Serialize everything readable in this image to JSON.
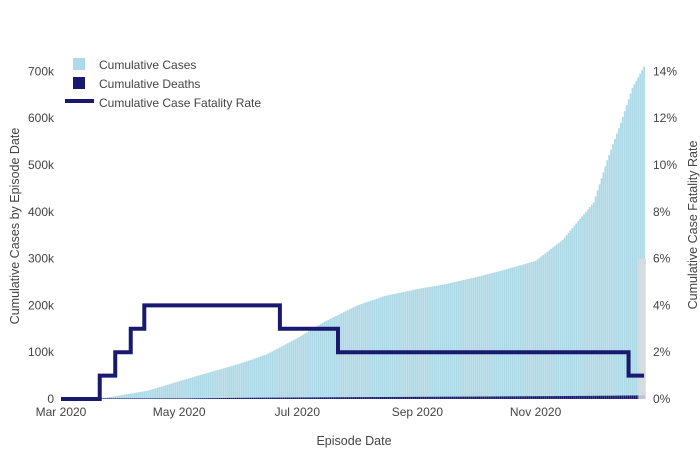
{
  "chart_data": {
    "type": "bar",
    "xlabel": "Episode Date",
    "ylabel": "Cumulative Cases by Episode Date",
    "y2label": "Cumulative Case Fatality Rate",
    "x_range": [
      "2020-03-01",
      "2020-12-28"
    ],
    "x_ticks": [
      {
        "date": "2020-03-01",
        "label": "Mar 2020"
      },
      {
        "date": "2020-05-01",
        "label": "May 2020"
      },
      {
        "date": "2020-07-01",
        "label": "Jul 2020"
      },
      {
        "date": "2020-09-01",
        "label": "Sep 2020"
      },
      {
        "date": "2020-11-01",
        "label": "Nov 2020"
      }
    ],
    "ylim": [
      0,
      735000
    ],
    "y_ticks": [
      {
        "value": 0,
        "label": "0"
      },
      {
        "value": 100000,
        "label": "100k"
      },
      {
        "value": 200000,
        "label": "200k"
      },
      {
        "value": 300000,
        "label": "300k"
      },
      {
        "value": 400000,
        "label": "400k"
      },
      {
        "value": 500000,
        "label": "500k"
      },
      {
        "value": 600000,
        "label": "600k"
      },
      {
        "value": 700000,
        "label": "700k"
      }
    ],
    "y2lim": [
      0,
      14.7
    ],
    "y2_ticks": [
      {
        "value": 0,
        "label": "0%"
      },
      {
        "value": 2,
        "label": "2%"
      },
      {
        "value": 4,
        "label": "4%"
      },
      {
        "value": 6,
        "label": "6%"
      },
      {
        "value": 8,
        "label": "8%"
      },
      {
        "value": 10,
        "label": "10%"
      },
      {
        "value": 12,
        "label": "12%"
      },
      {
        "value": 14,
        "label": "14%"
      }
    ],
    "grid": false,
    "legend_position": "top-left",
    "legend": [
      {
        "label": "Cumulative Cases",
        "symbol": "square",
        "color": "#add8e6"
      },
      {
        "label": "Cumulative Deaths",
        "symbol": "square",
        "color": "#191970"
      },
      {
        "label": "Cumulative Case Fatality Rate",
        "symbol": "line",
        "color": "#191970"
      }
    ],
    "series": [
      {
        "name": "Cumulative Cases",
        "type": "bar",
        "color": "#add8e6",
        "points": [
          [
            "2020-03-20",
            0
          ],
          [
            "2020-04-01",
            8000
          ],
          [
            "2020-04-15",
            18000
          ],
          [
            "2020-05-01",
            38000
          ],
          [
            "2020-05-15",
            55000
          ],
          [
            "2020-06-01",
            75000
          ],
          [
            "2020-06-15",
            95000
          ],
          [
            "2020-07-01",
            130000
          ],
          [
            "2020-07-15",
            165000
          ],
          [
            "2020-08-01",
            200000
          ],
          [
            "2020-08-15",
            220000
          ],
          [
            "2020-09-01",
            235000
          ],
          [
            "2020-09-15",
            245000
          ],
          [
            "2020-10-01",
            260000
          ],
          [
            "2020-10-15",
            275000
          ],
          [
            "2020-11-01",
            295000
          ],
          [
            "2020-11-15",
            340000
          ],
          [
            "2020-12-01",
            420000
          ],
          [
            "2020-12-08",
            510000
          ],
          [
            "2020-12-15",
            590000
          ],
          [
            "2020-12-21",
            665000
          ],
          [
            "2020-12-27",
            710000
          ]
        ]
      },
      {
        "name": "Cumulative Deaths",
        "type": "bar",
        "color": "#191970",
        "points": [
          [
            "2020-03-20",
            0
          ],
          [
            "2020-04-15",
            500
          ],
          [
            "2020-06-01",
            2500
          ],
          [
            "2020-08-01",
            4000
          ],
          [
            "2020-10-01",
            5200
          ],
          [
            "2020-12-01",
            6800
          ],
          [
            "2020-12-27",
            7800
          ]
        ]
      },
      {
        "name": "Cumulative Case Fatality Rate",
        "type": "step-line",
        "axis": "right",
        "color": "#191970",
        "points": [
          [
            "2020-03-01",
            0
          ],
          [
            "2020-03-21",
            0
          ],
          [
            "2020-03-21",
            1
          ],
          [
            "2020-03-29",
            1
          ],
          [
            "2020-03-29",
            2
          ],
          [
            "2020-04-06",
            2
          ],
          [
            "2020-04-06",
            3
          ],
          [
            "2020-04-13",
            3
          ],
          [
            "2020-04-13",
            4
          ],
          [
            "2020-06-22",
            4
          ],
          [
            "2020-06-22",
            3
          ],
          [
            "2020-07-22",
            3
          ],
          [
            "2020-07-22",
            2
          ],
          [
            "2020-12-19",
            2
          ],
          [
            "2020-12-19",
            1
          ],
          [
            "2020-12-27",
            1
          ]
        ]
      }
    ],
    "annotation": {
      "from": "2020-12-24",
      "to": "2020-12-28",
      "y2_value": 6,
      "color": "#dcdcdc"
    }
  }
}
